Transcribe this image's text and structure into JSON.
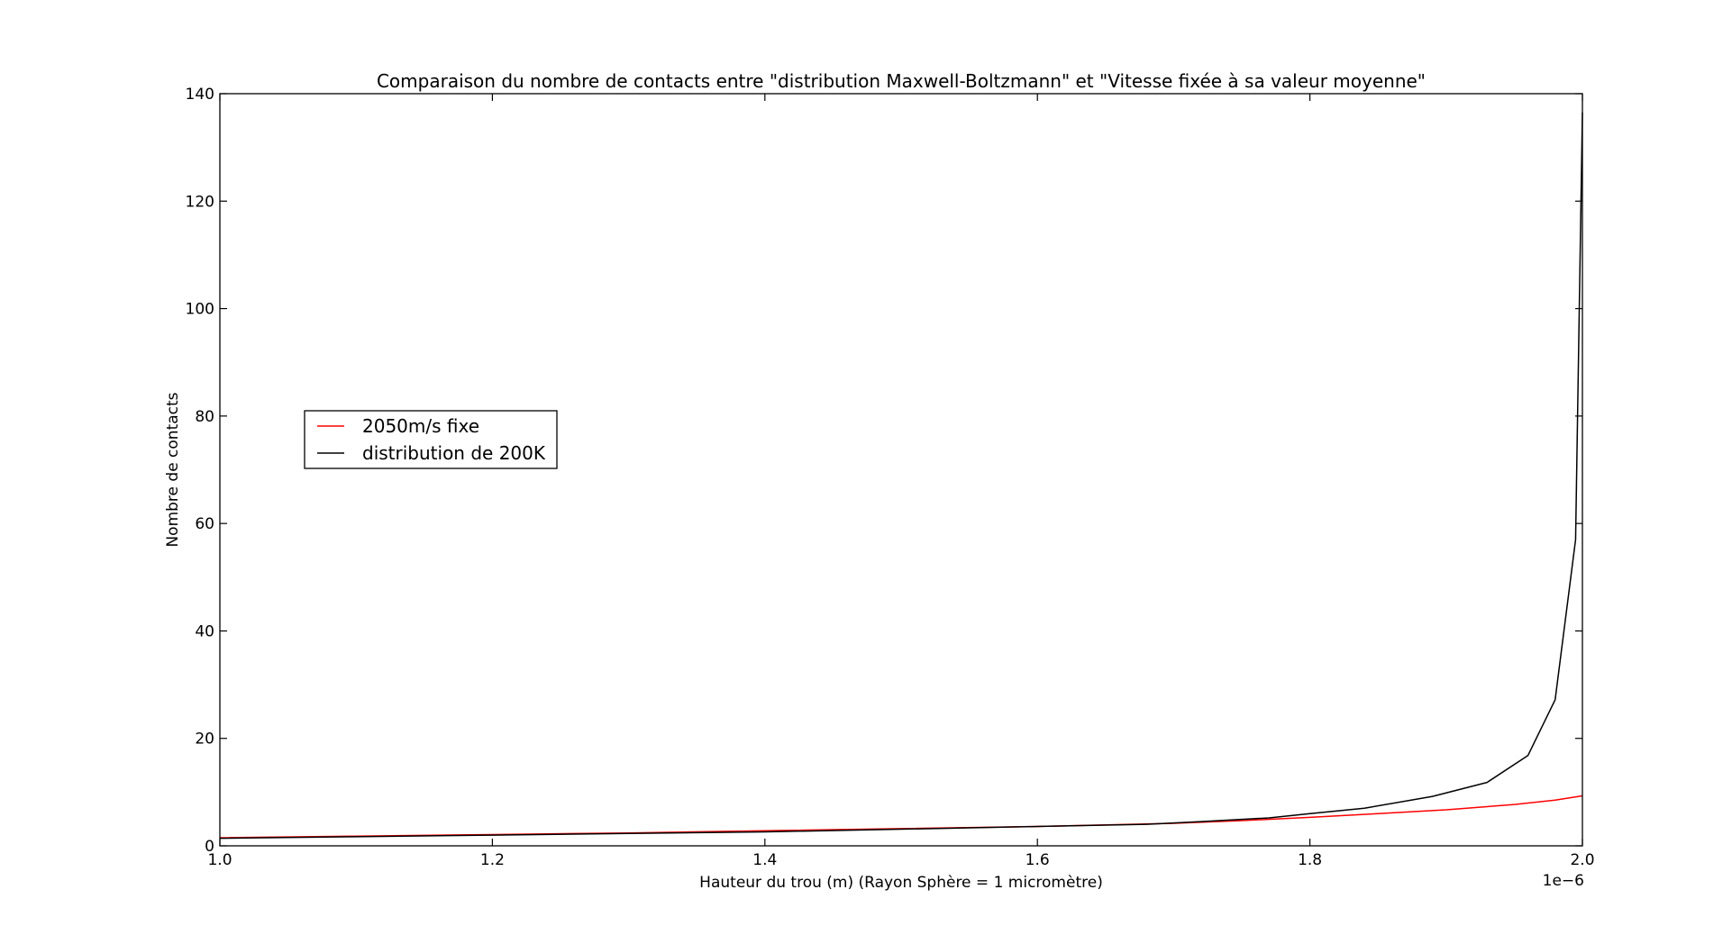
{
  "chart_data": {
    "type": "line",
    "title": "Comparaison du nombre de contacts entre \"distribution Maxwell-Boltzmann\" et \"Vitesse fixée à sa valeur moyenne\"",
    "xlabel": "Hauteur du trou (m) (Rayon Sphère = 1 micromètre)",
    "ylabel": "Nombre de contacts",
    "x_offset_label": "1e−6",
    "xlim": [
      1.0,
      2.0
    ],
    "ylim": [
      0,
      140
    ],
    "xticks": [
      1.0,
      1.2,
      1.4,
      1.6,
      1.8,
      2.0
    ],
    "xtick_labels": [
      "1.0",
      "1.2",
      "1.4",
      "1.6",
      "1.8",
      "2.0"
    ],
    "yticks": [
      0,
      20,
      40,
      60,
      80,
      100,
      120,
      140
    ],
    "ytick_labels": [
      "0",
      "20",
      "40",
      "60",
      "80",
      "100",
      "120",
      "140"
    ],
    "grid": false,
    "legend_position": "center-left",
    "series": [
      {
        "name": "2050m/s fixe",
        "color": "#ff0000",
        "x": [
          1.0,
          1.1,
          1.2,
          1.3,
          1.4,
          1.5,
          1.6,
          1.7,
          1.75,
          1.8,
          1.85,
          1.9,
          1.95,
          1.98,
          2.0
        ],
        "y": [
          1.5,
          1.8,
          2.1,
          2.4,
          2.8,
          3.2,
          3.6,
          4.2,
          4.7,
          5.3,
          6.0,
          6.7,
          7.7,
          8.5,
          9.3
        ]
      },
      {
        "name": "distribution de 200K",
        "color": "#000000",
        "x": [
          1.0,
          1.1,
          1.2,
          1.3,
          1.4,
          1.5,
          1.6,
          1.68,
          1.72,
          1.77,
          1.8,
          1.84,
          1.89,
          1.93,
          1.96,
          1.98,
          1.995,
          2.0
        ],
        "y": [
          1.4,
          1.7,
          2.0,
          2.3,
          2.6,
          3.1,
          3.6,
          4.0,
          4.5,
          5.2,
          6.0,
          7.0,
          9.2,
          11.8,
          16.8,
          27.2,
          57.0,
          136.5
        ]
      }
    ]
  }
}
